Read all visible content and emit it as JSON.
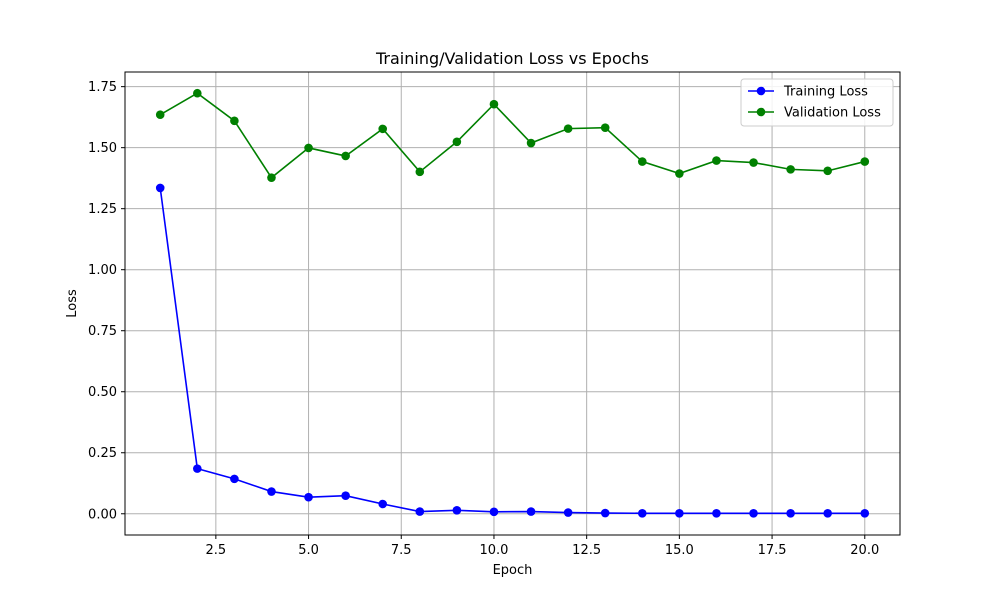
{
  "chart_data": {
    "type": "line",
    "title": "Training/Validation Loss vs Epochs",
    "xlabel": "Epoch",
    "ylabel": "Loss",
    "xlim": [
      0.05,
      20.95
    ],
    "ylim": [
      -0.087,
      1.81
    ],
    "xticks": [
      2.5,
      5.0,
      7.5,
      10.0,
      12.5,
      15.0,
      17.5,
      20.0
    ],
    "xtick_labels": [
      "2.5",
      "5.0",
      "7.5",
      "10.0",
      "12.5",
      "15.0",
      "17.5",
      "20.0"
    ],
    "yticks": [
      0.0,
      0.25,
      0.5,
      0.75,
      1.0,
      1.25,
      1.5,
      1.75
    ],
    "ytick_labels": [
      "0.00",
      "0.25",
      "0.50",
      "0.75",
      "1.00",
      "1.25",
      "1.50",
      "1.75"
    ],
    "grid": true,
    "legend_position": "top-right",
    "x": [
      1,
      2,
      3,
      4,
      5,
      6,
      7,
      8,
      9,
      10,
      11,
      12,
      13,
      14,
      15,
      16,
      17,
      18,
      19,
      20
    ],
    "series": [
      {
        "name": "Training Loss",
        "color": "#0000ff",
        "marker": "circle",
        "values": [
          1.335,
          0.185,
          0.143,
          0.091,
          0.068,
          0.074,
          0.04,
          0.009,
          0.014,
          0.008,
          0.009,
          0.005,
          0.003,
          0.002,
          0.002,
          0.002,
          0.002,
          0.002,
          0.002,
          0.002
        ]
      },
      {
        "name": "Validation Loss",
        "color": "#008000",
        "marker": "circle",
        "values": [
          1.635,
          1.723,
          1.61,
          1.377,
          1.499,
          1.466,
          1.577,
          1.401,
          1.524,
          1.678,
          1.519,
          1.578,
          1.582,
          1.443,
          1.394,
          1.447,
          1.439,
          1.411,
          1.405,
          1.443
        ]
      }
    ]
  }
}
